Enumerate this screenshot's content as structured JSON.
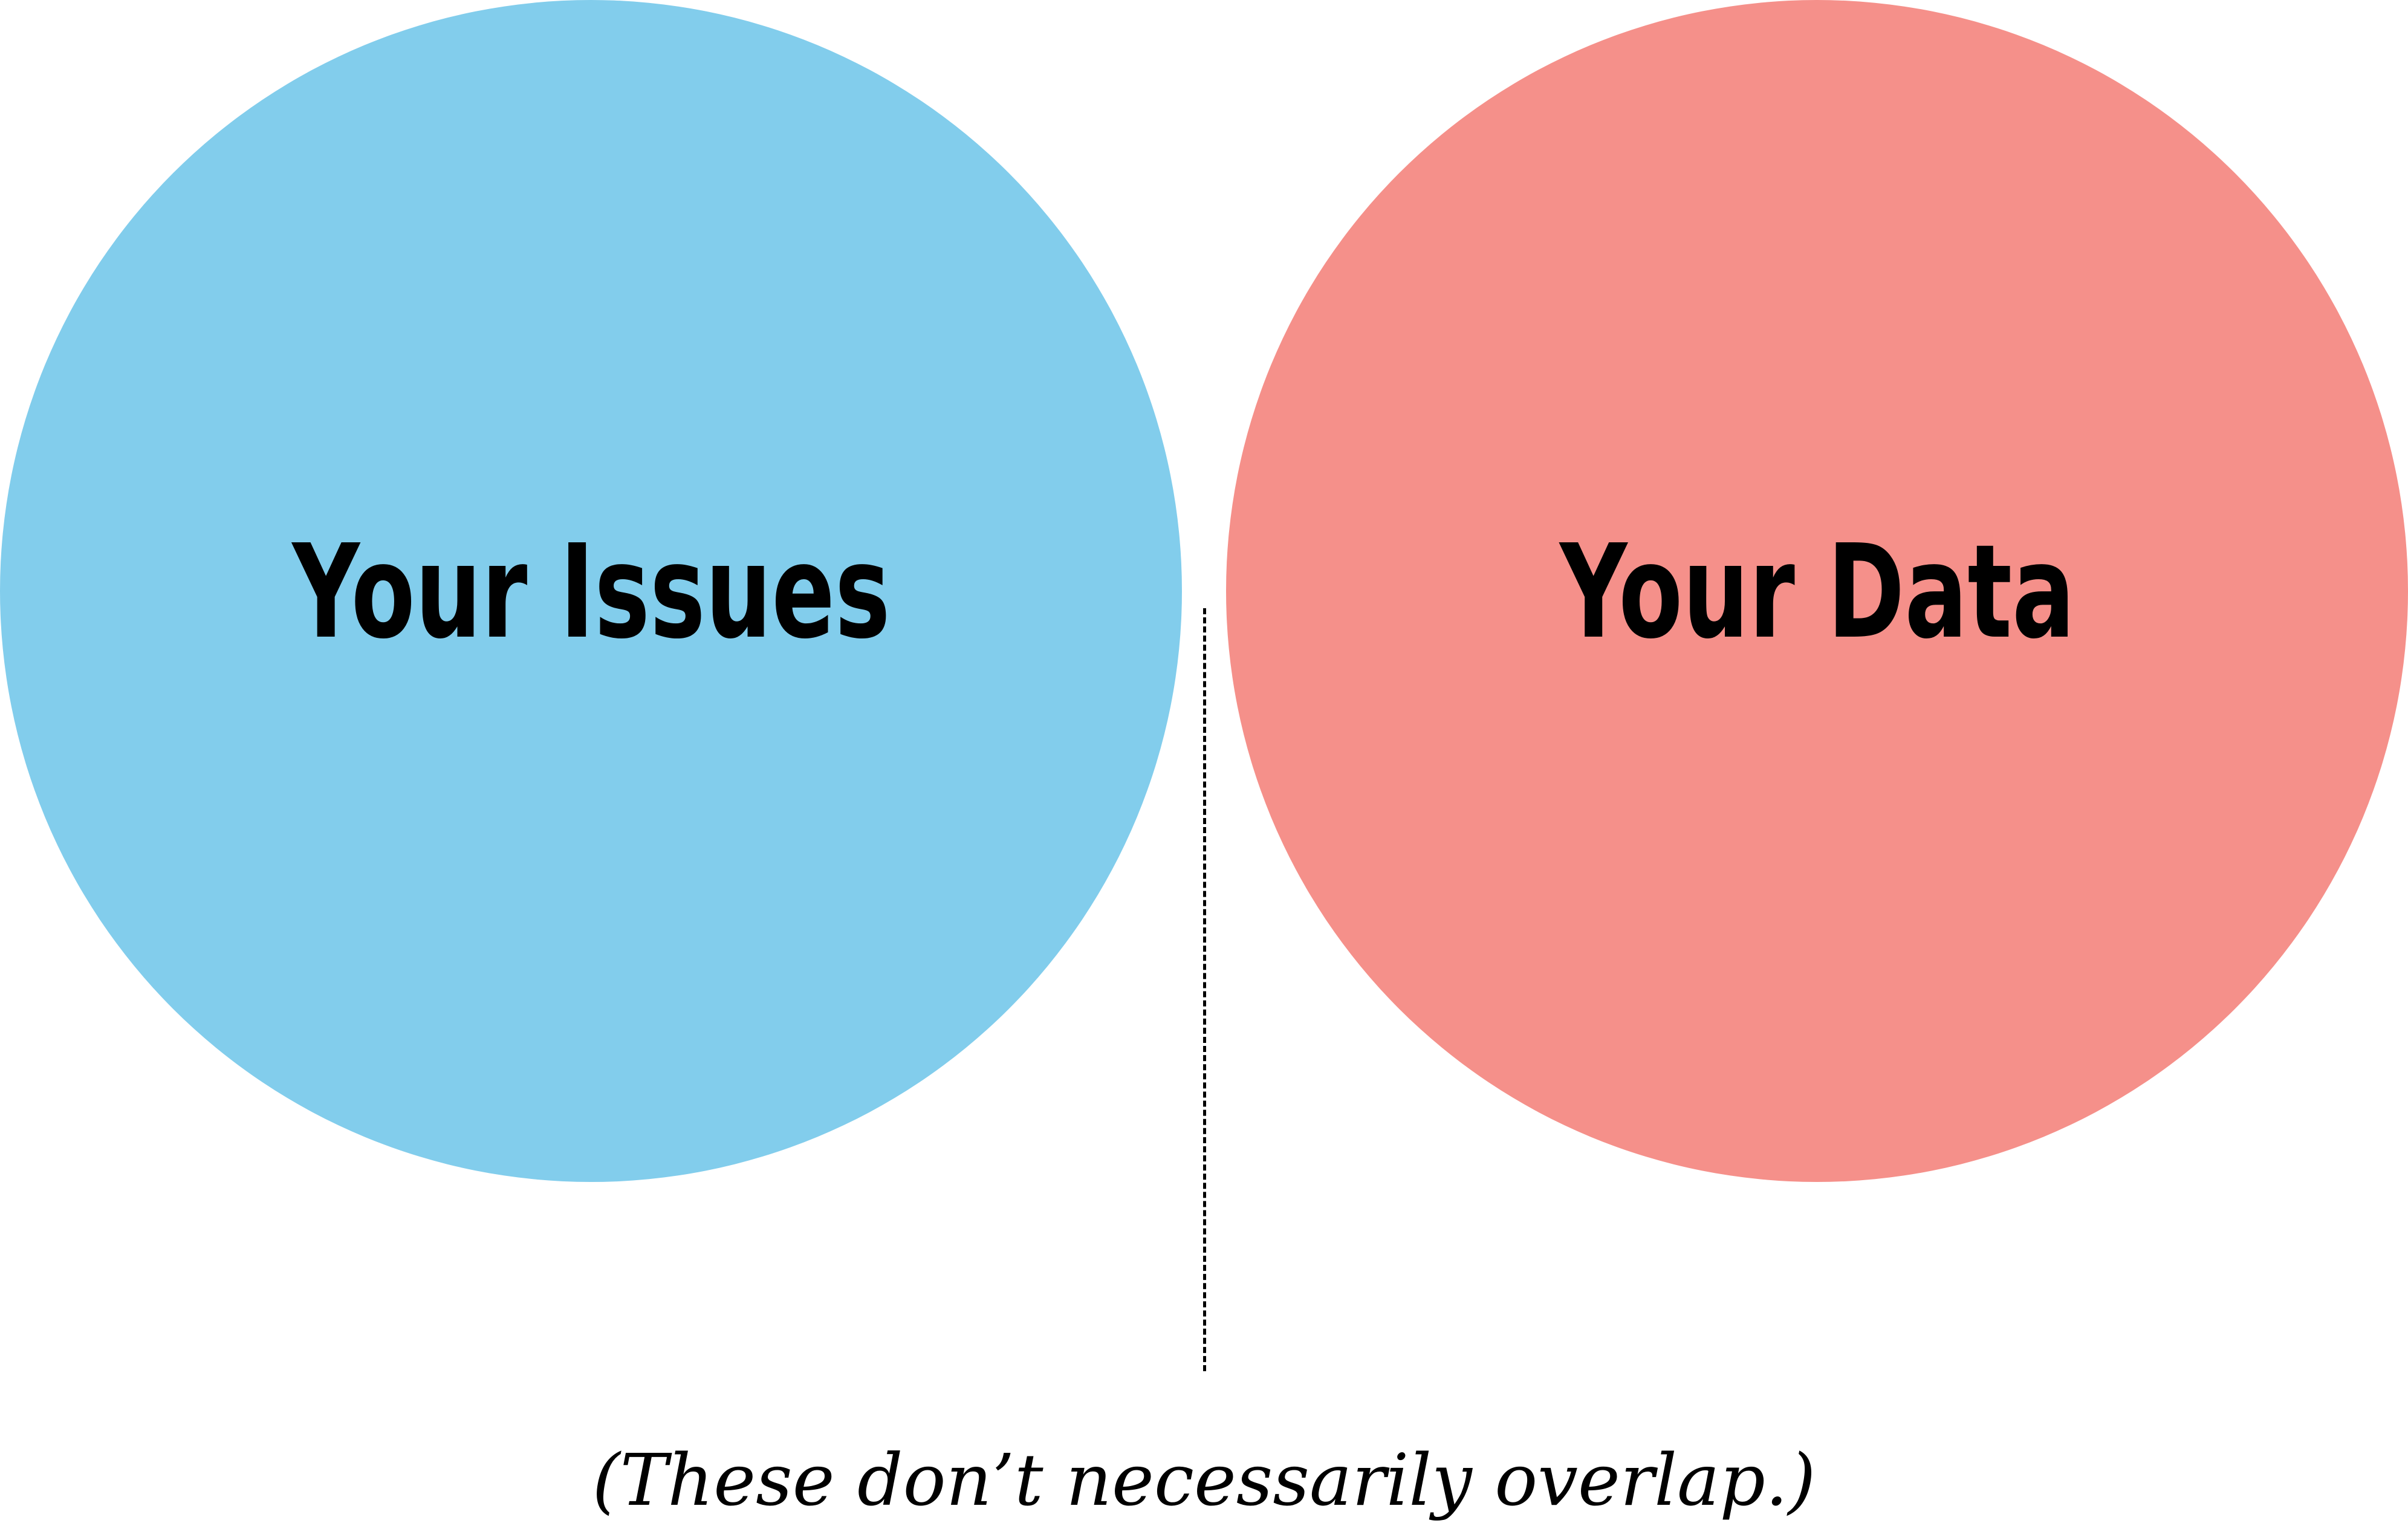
{
  "diagram": {
    "circles": [
      {
        "label": "Your Issues",
        "color": "#82cdec"
      },
      {
        "label": "Your Data",
        "color": "#f5908a"
      }
    ],
    "caption": "(These don’t necessarily overlap.)"
  }
}
